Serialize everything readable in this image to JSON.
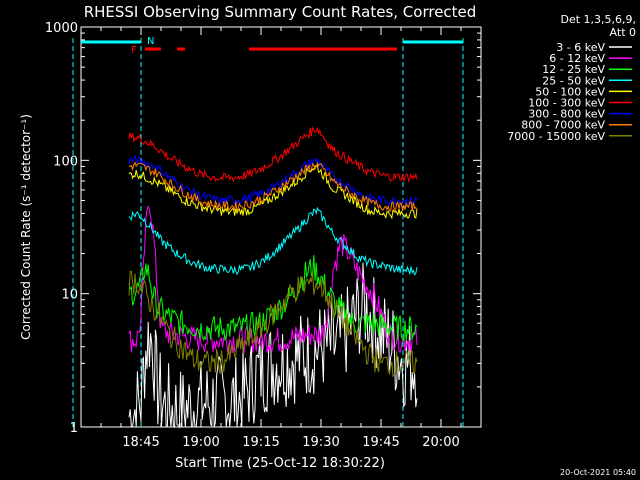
{
  "chart_data": {
    "type": "line",
    "title": "RHESSI Observing Summary Count Rates, Corrected",
    "ylabel": "Corrected Count Rate (s⁻¹ detector⁻¹)",
    "xlabel": "Start Time (25-Oct-12 18:30:22)",
    "y_scale": "log",
    "ylim": [
      1,
      1000
    ],
    "xlim_minutes_after_1830": [
      0,
      100
    ],
    "x_tick_minutes": [
      15,
      30,
      45,
      60,
      75,
      90
    ],
    "x_tick_labels": [
      "18:45",
      "19:00",
      "19:15",
      "19:30",
      "19:45",
      "20:00"
    ],
    "y_tick_values": [
      1,
      10,
      100,
      1000
    ],
    "y_tick_labels": [
      "1",
      "10",
      "100",
      "1000"
    ],
    "grid": false,
    "legend_placement": "right",
    "legend_header": [
      "Det 1,3,5,6,9,",
      "Att 0"
    ],
    "flag_labels": {
      "F": "F",
      "N": "N"
    },
    "timestamp": "20-Oct-2021 05:40",
    "colors": {
      "background": "#000000",
      "axes": "#ffffff",
      "night": "#00ffff",
      "flare": "#ff0000"
    },
    "night_intervals_minutes": [
      [
        -2,
        15
      ],
      [
        80.5,
        95.5
      ]
    ],
    "flare_intervals_minutes": [
      [
        16,
        20
      ],
      [
        24,
        26
      ],
      [
        42,
        79
      ]
    ],
    "series": [
      {
        "name": "3 - 6 keV",
        "color": "#ffffff",
        "points": [
          [
            12,
            1.2
          ],
          [
            14,
            1.4
          ],
          [
            15,
            1.6
          ],
          [
            16,
            3.5
          ],
          [
            17,
            5.0
          ],
          [
            18,
            4.0
          ],
          [
            19,
            2.0
          ],
          [
            21,
            1.4
          ],
          [
            25,
            1.3
          ],
          [
            30,
            1.5
          ],
          [
            35,
            1.6
          ],
          [
            40,
            1.6
          ],
          [
            44,
            2.5
          ],
          [
            48,
            3.0
          ],
          [
            52,
            3.2
          ],
          [
            56,
            3.5
          ],
          [
            60,
            4.0
          ],
          [
            64,
            4.0
          ],
          [
            67,
            5.5
          ],
          [
            69,
            7.0
          ],
          [
            71,
            8.0
          ],
          [
            73,
            6.5
          ],
          [
            75,
            5.0
          ],
          [
            77,
            4.5
          ],
          [
            79,
            3.5
          ],
          [
            81,
            3.0
          ],
          [
            84,
            3.0
          ]
        ]
      },
      {
        "name": "6 - 12 keV",
        "color": "#ff00ff",
        "points": [
          [
            12,
            4.5
          ],
          [
            14,
            4.5
          ],
          [
            15,
            6.5
          ],
          [
            16,
            25
          ],
          [
            17,
            55
          ],
          [
            18,
            30
          ],
          [
            19,
            12
          ],
          [
            20,
            5.5
          ],
          [
            22,
            5
          ],
          [
            30,
            4.5
          ],
          [
            40,
            4.5
          ],
          [
            50,
            4.5
          ],
          [
            55,
            4.8
          ],
          [
            58,
            5
          ],
          [
            60,
            4.8
          ],
          [
            62,
            8
          ],
          [
            63,
            15
          ],
          [
            65,
            24
          ],
          [
            67,
            20
          ],
          [
            69,
            15
          ],
          [
            71,
            12
          ],
          [
            73,
            10
          ],
          [
            75,
            7
          ],
          [
            77,
            5
          ],
          [
            80,
            4.5
          ],
          [
            84,
            4.5
          ]
        ]
      },
      {
        "name": "12 - 25 keV",
        "color": "#00ff00",
        "points": [
          [
            12,
            10
          ],
          [
            14,
            10.5
          ],
          [
            15,
            12
          ],
          [
            16,
            16
          ],
          [
            17,
            14
          ],
          [
            18,
            10
          ],
          [
            19,
            8
          ],
          [
            21,
            7
          ],
          [
            25,
            6
          ],
          [
            30,
            5.5
          ],
          [
            40,
            5.5
          ],
          [
            45,
            6
          ],
          [
            50,
            8
          ],
          [
            53,
            10
          ],
          [
            56,
            14
          ],
          [
            58,
            16
          ],
          [
            60,
            13
          ],
          [
            62,
            10
          ],
          [
            64,
            8
          ],
          [
            66,
            7
          ],
          [
            68,
            6
          ],
          [
            70,
            6
          ],
          [
            72,
            6
          ],
          [
            75,
            5.8
          ],
          [
            80,
            5.5
          ],
          [
            84,
            5.5
          ]
        ]
      },
      {
        "name": "25 - 50 keV",
        "color": "#00ffff",
        "points": [
          [
            12,
            38
          ],
          [
            14,
            40
          ],
          [
            15,
            38
          ],
          [
            17,
            33
          ],
          [
            20,
            25
          ],
          [
            24,
            20
          ],
          [
            28,
            17
          ],
          [
            32,
            15.5
          ],
          [
            38,
            15
          ],
          [
            42,
            15.5
          ],
          [
            46,
            18
          ],
          [
            50,
            23
          ],
          [
            54,
            30
          ],
          [
            57,
            38
          ],
          [
            59,
            42
          ],
          [
            61,
            35
          ],
          [
            63,
            28
          ],
          [
            66,
            23
          ],
          [
            69,
            19
          ],
          [
            72,
            17
          ],
          [
            76,
            16
          ],
          [
            80,
            15
          ],
          [
            84,
            15
          ]
        ]
      },
      {
        "name": "50 - 100 keV",
        "color": "#ffff00",
        "points": [
          [
            12,
            78
          ],
          [
            14,
            80
          ],
          [
            16,
            75
          ],
          [
            19,
            68
          ],
          [
            22,
            60
          ],
          [
            26,
            50
          ],
          [
            30,
            45
          ],
          [
            34,
            42
          ],
          [
            38,
            41
          ],
          [
            42,
            42
          ],
          [
            46,
            48
          ],
          [
            50,
            58
          ],
          [
            54,
            70
          ],
          [
            57,
            85
          ],
          [
            59,
            90
          ],
          [
            61,
            75
          ],
          [
            63,
            62
          ],
          [
            66,
            55
          ],
          [
            69,
            48
          ],
          [
            72,
            42
          ],
          [
            76,
            40
          ],
          [
            80,
            40
          ],
          [
            84,
            40
          ]
        ]
      },
      {
        "name": "100 - 300 keV",
        "color": "#ff0000",
        "points": [
          [
            12,
            150
          ],
          [
            14,
            148
          ],
          [
            16,
            140
          ],
          [
            19,
            125
          ],
          [
            22,
            105
          ],
          [
            26,
            90
          ],
          [
            30,
            78
          ],
          [
            34,
            74
          ],
          [
            38,
            74
          ],
          [
            42,
            78
          ],
          [
            46,
            90
          ],
          [
            50,
            108
          ],
          [
            54,
            135
          ],
          [
            57,
            160
          ],
          [
            59,
            175
          ],
          [
            61,
            145
          ],
          [
            63,
            120
          ],
          [
            66,
            105
          ],
          [
            69,
            92
          ],
          [
            72,
            82
          ],
          [
            76,
            76
          ],
          [
            80,
            75
          ],
          [
            84,
            75
          ]
        ]
      },
      {
        "name": "300 - 800 keV",
        "color": "#0000ff",
        "points": [
          [
            12,
            100
          ],
          [
            14,
            100
          ],
          [
            16,
            96
          ],
          [
            19,
            88
          ],
          [
            22,
            75
          ],
          [
            26,
            62
          ],
          [
            30,
            54
          ],
          [
            34,
            50
          ],
          [
            38,
            50
          ],
          [
            42,
            52
          ],
          [
            46,
            58
          ],
          [
            50,
            68
          ],
          [
            54,
            82
          ],
          [
            57,
            95
          ],
          [
            59,
            100
          ],
          [
            61,
            88
          ],
          [
            63,
            75
          ],
          [
            66,
            66
          ],
          [
            69,
            58
          ],
          [
            72,
            52
          ],
          [
            76,
            50
          ],
          [
            80,
            50
          ],
          [
            84,
            50
          ]
        ]
      },
      {
        "name": "800 - 7000 keV",
        "color": "#ff8000",
        "points": [
          [
            12,
            90
          ],
          [
            14,
            92
          ],
          [
            16,
            88
          ],
          [
            19,
            80
          ],
          [
            22,
            68
          ],
          [
            26,
            57
          ],
          [
            30,
            49
          ],
          [
            34,
            46
          ],
          [
            38,
            45
          ],
          [
            42,
            47
          ],
          [
            46,
            53
          ],
          [
            50,
            63
          ],
          [
            54,
            77
          ],
          [
            57,
            88
          ],
          [
            59,
            93
          ],
          [
            61,
            82
          ],
          [
            63,
            70
          ],
          [
            66,
            60
          ],
          [
            69,
            53
          ],
          [
            72,
            48
          ],
          [
            76,
            45
          ],
          [
            80,
            45
          ],
          [
            84,
            45
          ]
        ]
      },
      {
        "name": "7000 - 15000 keV",
        "color": "#808000",
        "points": [
          [
            12,
            12
          ],
          [
            14,
            12.5
          ],
          [
            16,
            10
          ],
          [
            18,
            8
          ],
          [
            20,
            6.5
          ],
          [
            22,
            5
          ],
          [
            25,
            4
          ],
          [
            28,
            3.2
          ],
          [
            32,
            3
          ],
          [
            36,
            3.2
          ],
          [
            40,
            4
          ],
          [
            44,
            5
          ],
          [
            48,
            7
          ],
          [
            51,
            9
          ],
          [
            54,
            11
          ],
          [
            57,
            12
          ],
          [
            59,
            12
          ],
          [
            61,
            10.5
          ],
          [
            63,
            8
          ],
          [
            66,
            6
          ],
          [
            69,
            4.5
          ],
          [
            72,
            3.5
          ],
          [
            75,
            3
          ],
          [
            80,
            3
          ],
          [
            84,
            3
          ]
        ]
      }
    ]
  }
}
